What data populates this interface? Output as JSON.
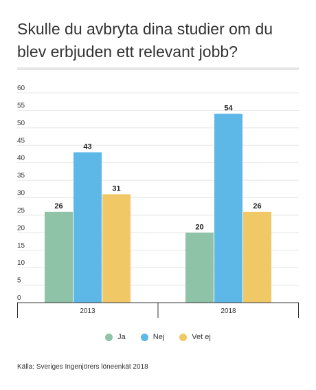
{
  "title": "Skulle du avbryta dina studier om du blev erbjuden ett relevant jobb?",
  "source": "Källa: Sveriges Ingenjörers löneenkät 2018",
  "colors": {
    "Ja": "#8ec3a7",
    "Nej": "#5db8e8",
    "Vet ej": "#f0c866",
    "grid": "#e5e5e5",
    "axis": "#333333"
  },
  "chart_data": {
    "type": "bar",
    "categories": [
      "2013",
      "2018"
    ],
    "series": [
      {
        "name": "Ja",
        "values": [
          26,
          20
        ]
      },
      {
        "name": "Nej",
        "values": [
          43,
          54
        ]
      },
      {
        "name": "Vet ej",
        "values": [
          31,
          26
        ]
      }
    ],
    "yticks": [
      0,
      5,
      10,
      15,
      20,
      25,
      30,
      35,
      40,
      45,
      50,
      55,
      60
    ],
    "ylim": [
      0,
      60
    ],
    "grid": true,
    "data_labels": true,
    "legend_position": "bottom"
  }
}
